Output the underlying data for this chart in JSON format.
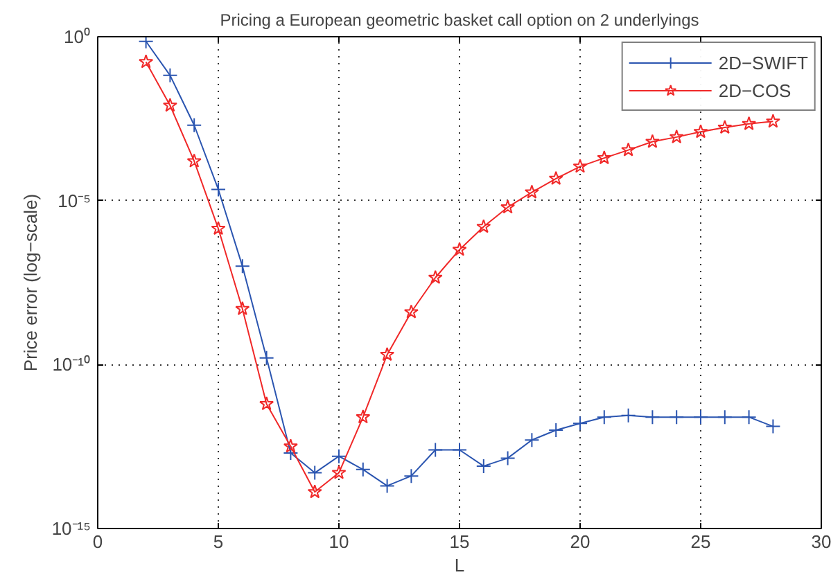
{
  "chart_data": {
    "type": "line",
    "title": "Pricing a European geometric basket call option on 2 underlyings",
    "xlabel": "L",
    "ylabel": "Price error (log−scale)",
    "x": [
      2,
      3,
      4,
      5,
      6,
      7,
      8,
      9,
      10,
      11,
      12,
      13,
      14,
      15,
      16,
      17,
      18,
      19,
      20,
      21,
      22,
      23,
      24,
      25,
      26,
      27,
      28
    ],
    "series": [
      {
        "name": "2D−SWIFT",
        "color": "#2b55b0",
        "marker": "cross",
        "values": [
          0.72,
          0.066,
          0.002,
          2.2e-05,
          1e-07,
          1.6e-10,
          2e-13,
          5e-14,
          1.6e-13,
          6.3e-14,
          2e-14,
          4e-14,
          2.5e-13,
          2.5e-13,
          8e-14,
          1.4e-13,
          5e-13,
          1e-12,
          1.6e-12,
          2.5e-12,
          2.8e-12,
          2.5e-12,
          2.5e-12,
          2.5e-12,
          2.5e-12,
          2.5e-12,
          1.3e-12
        ]
      },
      {
        "name": "2D−COS",
        "color": "#f02828",
        "marker": "star",
        "values": [
          0.17,
          0.008,
          0.00016,
          1.4e-06,
          5e-09,
          6.3e-12,
          3.2e-13,
          1.3e-14,
          5e-14,
          2.5e-12,
          2e-10,
          4e-09,
          4.5e-08,
          3.2e-07,
          1.6e-06,
          6.3e-06,
          1.8e-05,
          4.7e-05,
          0.00011,
          0.0002,
          0.00035,
          0.00063,
          0.00087,
          0.00126,
          0.0017,
          0.0022,
          0.0026
        ]
      }
    ],
    "xlim": [
      0,
      30
    ],
    "xticks": [
      0,
      5,
      10,
      15,
      20,
      25,
      30
    ],
    "ylim": [
      1e-15,
      1
    ],
    "yticks": [
      {
        "value": 1e-15,
        "label": "10⁻¹⁵"
      },
      {
        "value": 1e-10,
        "label": "10⁻¹⁰"
      },
      {
        "value": 1e-05,
        "label": "10⁻⁵"
      },
      {
        "value": 1,
        "label": "10⁰"
      }
    ],
    "log": "y",
    "grid": true,
    "legend": "top right",
    "line_style": "solid"
  }
}
